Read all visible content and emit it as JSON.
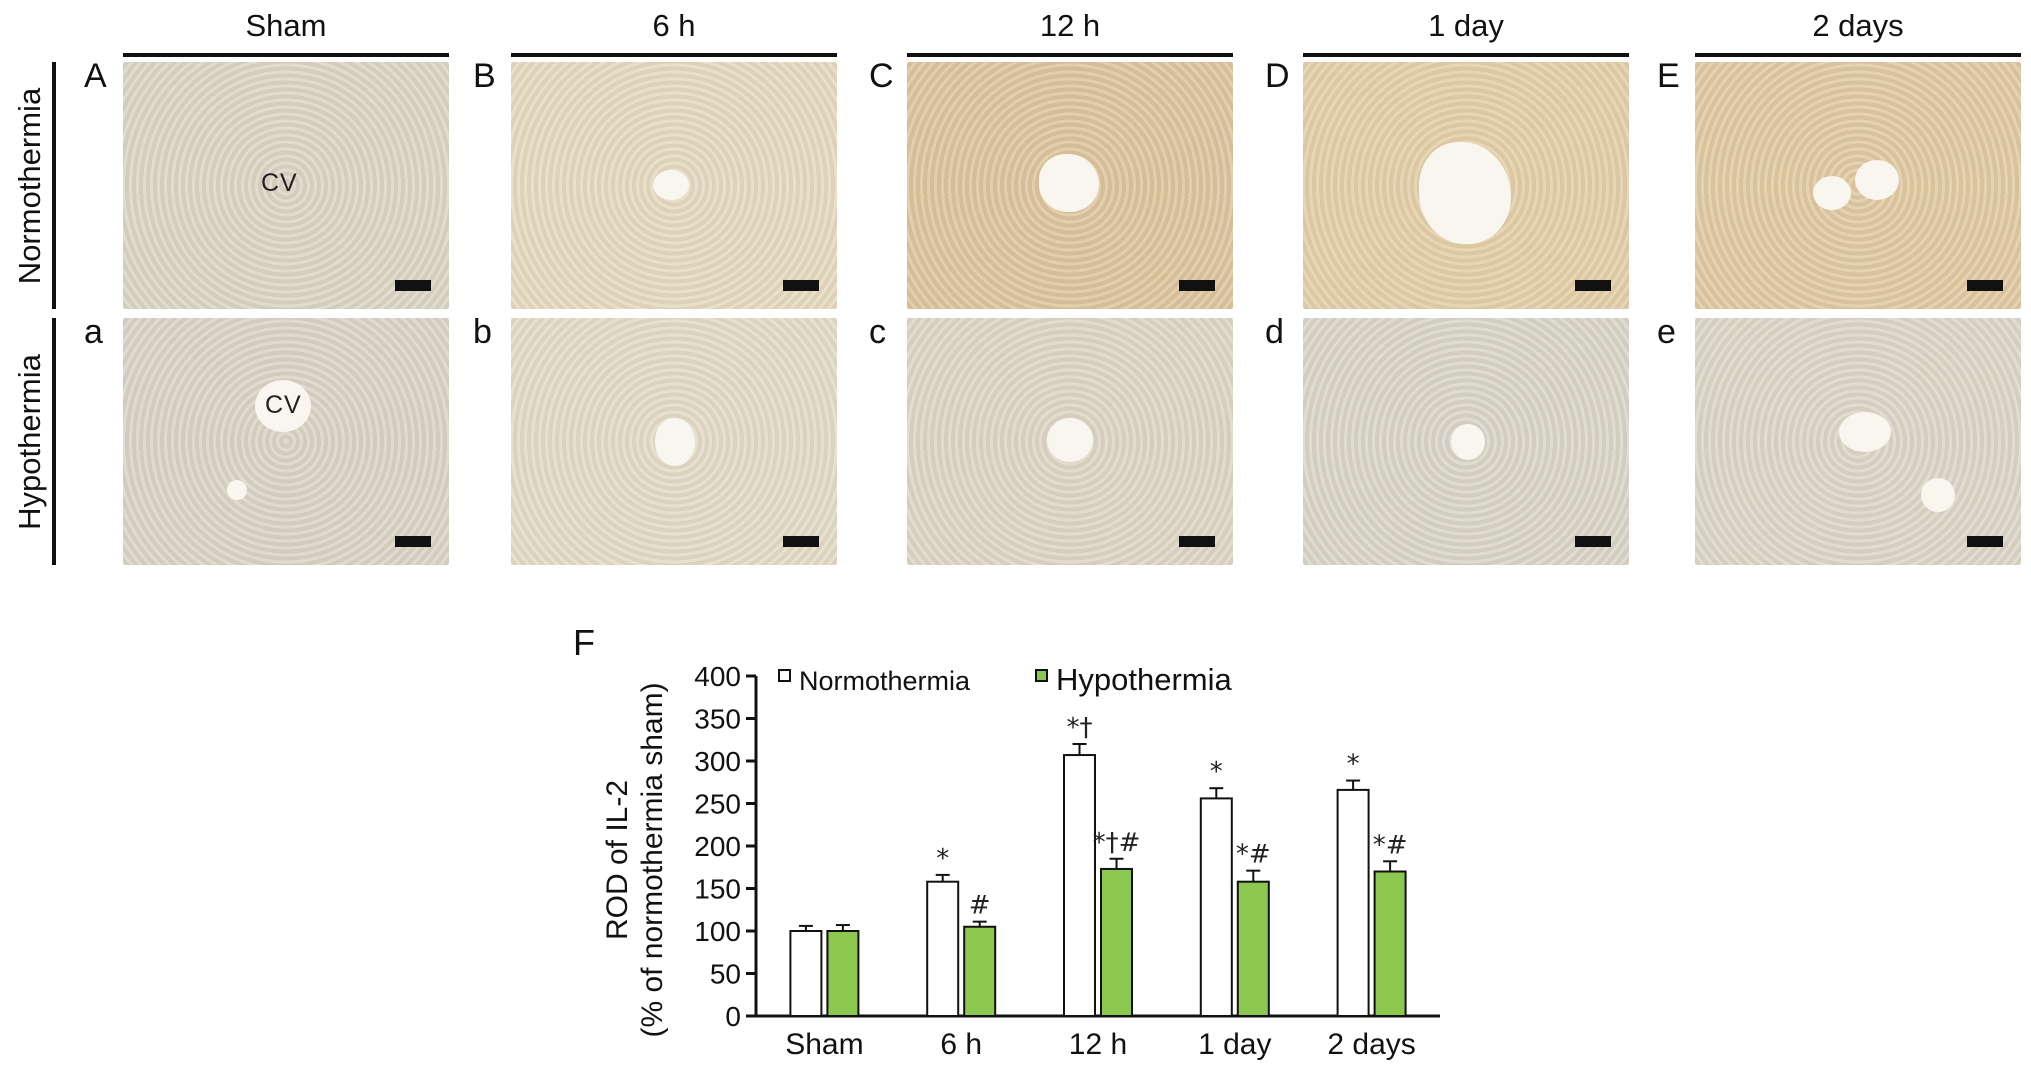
{
  "columns": [
    "Sham",
    "6 h",
    "12 h",
    "1 day",
    "2 days"
  ],
  "rows": [
    "Normothermia",
    "Hypothermia"
  ],
  "panel_letters": {
    "top": [
      "A",
      "B",
      "C",
      "D",
      "E"
    ],
    "bottom": [
      "a",
      "b",
      "c",
      "d",
      "e"
    ]
  },
  "lumen_label": "CV",
  "tissue_colors": {
    "top": [
      "#d9d4c3",
      "#e4d9bf",
      "#dcc49c",
      "#e2cda6",
      "#dfc8a0"
    ],
    "bottom": [
      "#d8d3c4",
      "#e2dac5",
      "#dcd5c4",
      "#d8d4c7",
      "#dad5c5"
    ]
  },
  "figure_letter": "F",
  "chart_data": {
    "type": "bar",
    "categories": [
      "Sham",
      "6 h",
      "12 h",
      "1 day",
      "2 days"
    ],
    "series": [
      {
        "name": "Normothermia",
        "color": "#ffffff",
        "values": [
          100,
          158,
          307,
          256,
          266
        ],
        "errors": [
          6,
          8,
          13,
          12,
          11
        ],
        "annotations": [
          "",
          "*",
          "*†",
          "*",
          "*"
        ]
      },
      {
        "name": "Hypothermia",
        "color": "#8cc850",
        "values": [
          100,
          105,
          173,
          158,
          170
        ],
        "errors": [
          7,
          6,
          12,
          13,
          12
        ],
        "annotations": [
          "",
          "#",
          "*†#",
          "*#",
          "*#"
        ]
      }
    ],
    "ylabel_line1": "ROD of IL-2",
    "ylabel_line2": "(% of normothermia sham)",
    "ylim": [
      0,
      400
    ],
    "yticks": [
      0,
      50,
      100,
      150,
      200,
      250,
      300,
      350,
      400
    ],
    "legend_position": "top"
  }
}
